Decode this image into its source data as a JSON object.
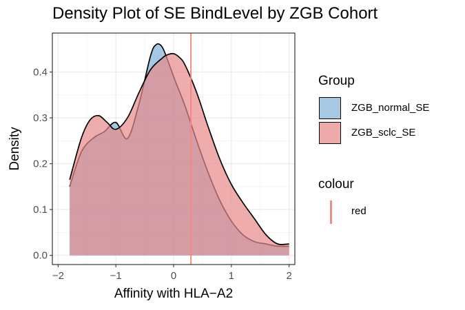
{
  "chart_data": {
    "type": "area",
    "title": "Density Plot of SE BindLevel by ZGB Cohort",
    "xlabel": "Affinity with HLA−A2",
    "ylabel": "Density",
    "xlim": [
      -2.1,
      2.1
    ],
    "ylim": [
      -0.02,
      0.485
    ],
    "x_ticks": [
      -2,
      -1,
      0,
      1,
      2
    ],
    "x_tick_labels": [
      "−2",
      "−1",
      "0",
      "1",
      "2"
    ],
    "y_ticks": [
      0.0,
      0.1,
      0.2,
      0.3,
      0.4
    ],
    "y_tick_labels": [
      "0.0",
      "0.1",
      "0.2",
      "0.3",
      "0.4"
    ],
    "grid": true,
    "legend_placement": "right",
    "series": [
      {
        "name": "ZGB_normal_SE",
        "fill": "#7fb1d9",
        "x": [
          -1.8,
          -1.6,
          -1.4,
          -1.2,
          -1.0,
          -0.8,
          -0.6,
          -0.4,
          -0.3,
          -0.2,
          -0.1,
          0.0,
          0.2,
          0.4,
          0.6,
          0.8,
          1.0,
          1.2,
          1.4,
          1.6,
          1.8,
          2.0
        ],
        "y": [
          0.15,
          0.225,
          0.255,
          0.27,
          0.29,
          0.255,
          0.33,
          0.435,
          0.46,
          0.455,
          0.425,
          0.39,
          0.325,
          0.25,
          0.18,
          0.12,
          0.075,
          0.045,
          0.03,
          0.025,
          0.02,
          0.02
        ]
      },
      {
        "name": "ZGB_sclc_SE",
        "fill": "#e8898a",
        "x": [
          -1.8,
          -1.6,
          -1.45,
          -1.3,
          -1.15,
          -1.0,
          -0.8,
          -0.6,
          -0.4,
          -0.2,
          -0.1,
          0.0,
          0.1,
          0.2,
          0.4,
          0.6,
          0.8,
          1.0,
          1.2,
          1.4,
          1.6,
          1.8,
          2.0
        ],
        "y": [
          0.165,
          0.255,
          0.295,
          0.305,
          0.29,
          0.275,
          0.3,
          0.355,
          0.405,
          0.43,
          0.438,
          0.44,
          0.432,
          0.415,
          0.355,
          0.28,
          0.21,
          0.155,
          0.115,
          0.08,
          0.045,
          0.025,
          0.025
        ]
      }
    ],
    "vline": {
      "x": 0.3,
      "color": "red",
      "stroke": "#ef8a83"
    }
  },
  "legend": {
    "group_title": "Group",
    "items": [
      {
        "label": "ZGB_normal_SE",
        "color": "#a7c8e2"
      },
      {
        "label": "ZGB_sclc_SE",
        "color": "#eeaaaa"
      }
    ],
    "colour_title": "colour",
    "colour_item": "red"
  }
}
